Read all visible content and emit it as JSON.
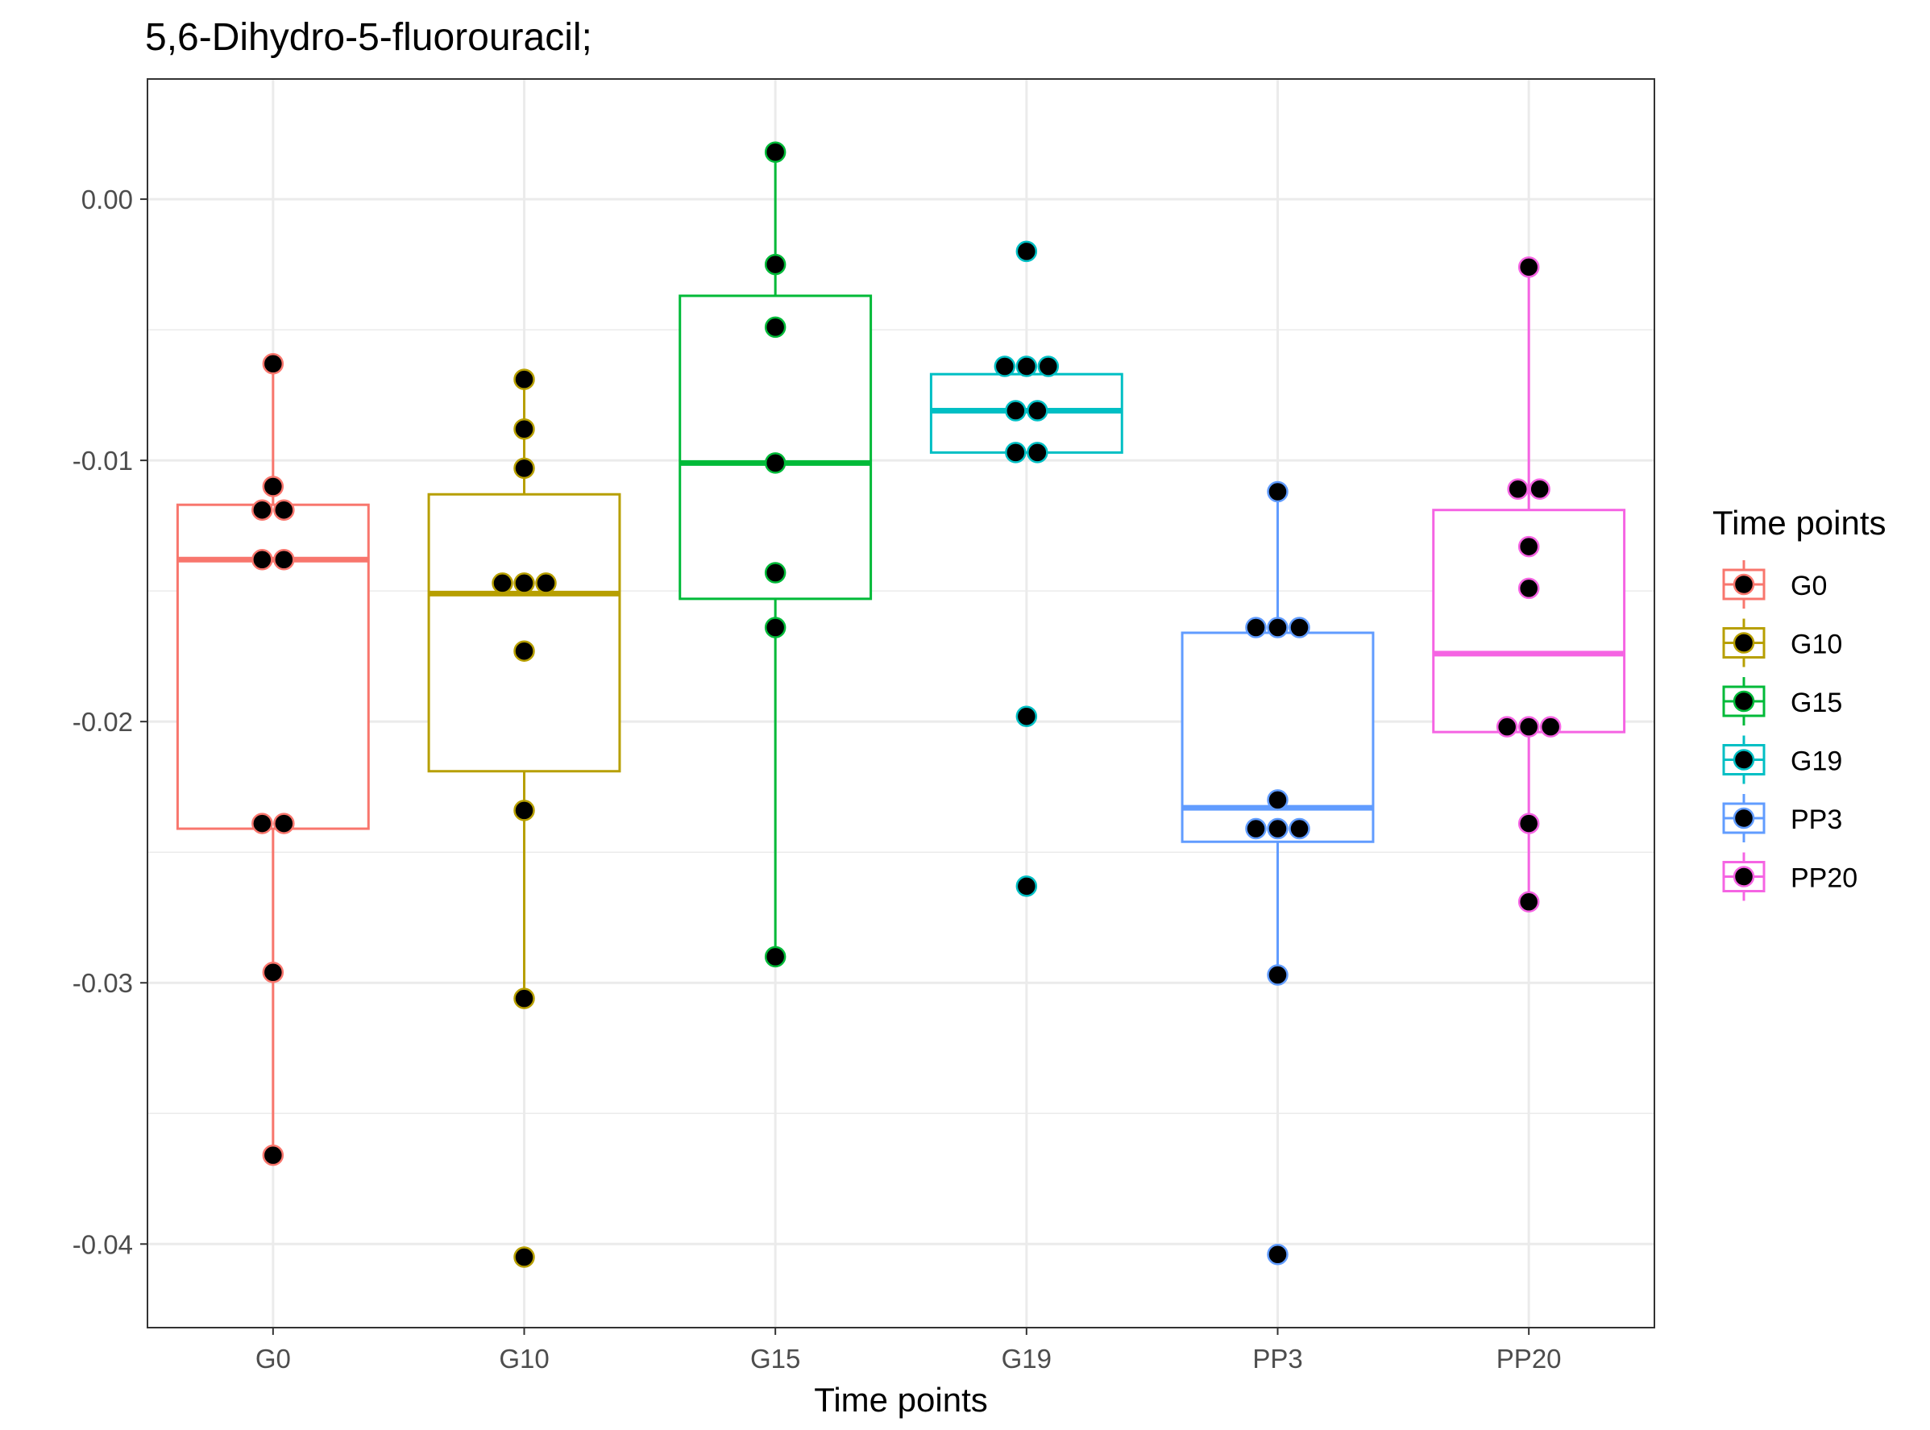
{
  "chart_data": {
    "type": "box",
    "title": "5,6-Dihydro-5-fluorouracil;",
    "xlabel": "Time points",
    "ylabel": "",
    "categories": [
      "G0",
      "G10",
      "G15",
      "G19",
      "PP3",
      "PP20"
    ],
    "ylim": [
      -0.0432,
      0.0046
    ],
    "yticks": [
      0.0,
      -0.01,
      -0.02,
      -0.03,
      -0.04
    ],
    "ytick_labels": [
      "0.00",
      "-0.01",
      "-0.02",
      "-0.03",
      "-0.04"
    ],
    "grid": true,
    "legend": {
      "title": "Time points",
      "position": "right",
      "entries": [
        "G0",
        "G10",
        "G15",
        "G19",
        "PP3",
        "PP20"
      ]
    },
    "colors": {
      "G0": "#F8766D",
      "G10": "#B79F00",
      "G15": "#00BA38",
      "G19": "#00BFC4",
      "PP3": "#619CFF",
      "PP20": "#F564E3"
    },
    "point_color": "#000000",
    "series": [
      {
        "category": "G0",
        "box": {
          "lower_whisker": -0.0366,
          "q1": -0.0241,
          "median": -0.0138,
          "q3": -0.0117,
          "upper_whisker": -0.0063
        },
        "points": [
          -0.0063,
          -0.011,
          -0.0119,
          -0.0119,
          -0.0138,
          -0.0138,
          -0.0239,
          -0.0239,
          -0.0296,
          -0.0366
        ]
      },
      {
        "category": "G10",
        "box": {
          "lower_whisker": -0.0306,
          "q1": -0.0219,
          "median": -0.0151,
          "q3": -0.0113,
          "upper_whisker": -0.0069
        },
        "points": [
          -0.0069,
          -0.0088,
          -0.0103,
          -0.0147,
          -0.0147,
          -0.0147,
          -0.0173,
          -0.0234,
          -0.0306,
          -0.0405
        ]
      },
      {
        "category": "G15",
        "box": {
          "lower_whisker": -0.029,
          "q1": -0.0153,
          "median": -0.0101,
          "q3": -0.0037,
          "upper_whisker": 0.0018
        },
        "points": [
          0.0018,
          -0.0025,
          -0.0049,
          -0.0101,
          -0.0143,
          -0.0164,
          -0.029
        ]
      },
      {
        "category": "G19",
        "box": {
          "lower_whisker": -0.0097,
          "q1": -0.0097,
          "median": -0.0081,
          "q3": -0.0067,
          "upper_whisker": -0.0064
        },
        "points": [
          -0.002,
          -0.0064,
          -0.0064,
          -0.0064,
          -0.0081,
          -0.0081,
          -0.0097,
          -0.0097,
          -0.0198,
          -0.0263
        ]
      },
      {
        "category": "PP3",
        "box": {
          "lower_whisker": -0.0297,
          "q1": -0.0246,
          "median": -0.0233,
          "q3": -0.0166,
          "upper_whisker": -0.0112
        },
        "points": [
          -0.0112,
          -0.0164,
          -0.0164,
          -0.0164,
          -0.023,
          -0.0241,
          -0.0241,
          -0.0241,
          -0.0297,
          -0.0404
        ]
      },
      {
        "category": "PP20",
        "box": {
          "lower_whisker": -0.0269,
          "q1": -0.0204,
          "median": -0.0174,
          "q3": -0.0119,
          "upper_whisker": -0.0026
        },
        "points": [
          -0.0026,
          -0.0111,
          -0.0111,
          -0.0133,
          -0.0149,
          -0.0202,
          -0.0202,
          -0.0202,
          -0.0239,
          -0.0269
        ]
      }
    ]
  }
}
